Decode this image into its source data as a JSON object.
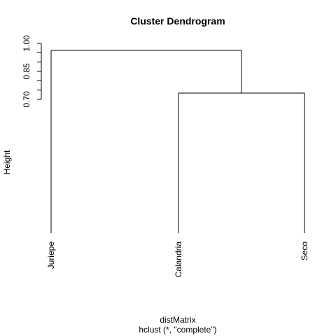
{
  "chart_data": {
    "type": "dendrogram",
    "title": "Cluster Dendrogram",
    "ylabel": "Height",
    "xlabel": "distMatrix",
    "sub": "hclust (*, \"complete\")",
    "y_ticks": [
      "0.70",
      "0.85",
      "1.00"
    ],
    "y_tick_values": [
      0.7,
      0.85,
      1.0
    ],
    "y_minor_step": 0.05,
    "leaves": [
      "Juriepe",
      "Calandria",
      "Seco"
    ],
    "merges": [
      {
        "left": "Calandria",
        "right": "Seco",
        "height": 0.75
      },
      {
        "left": "Juriepe",
        "right": "cluster-1",
        "height": 0.97
      }
    ],
    "leaf_height": 0.0,
    "grid": false
  }
}
